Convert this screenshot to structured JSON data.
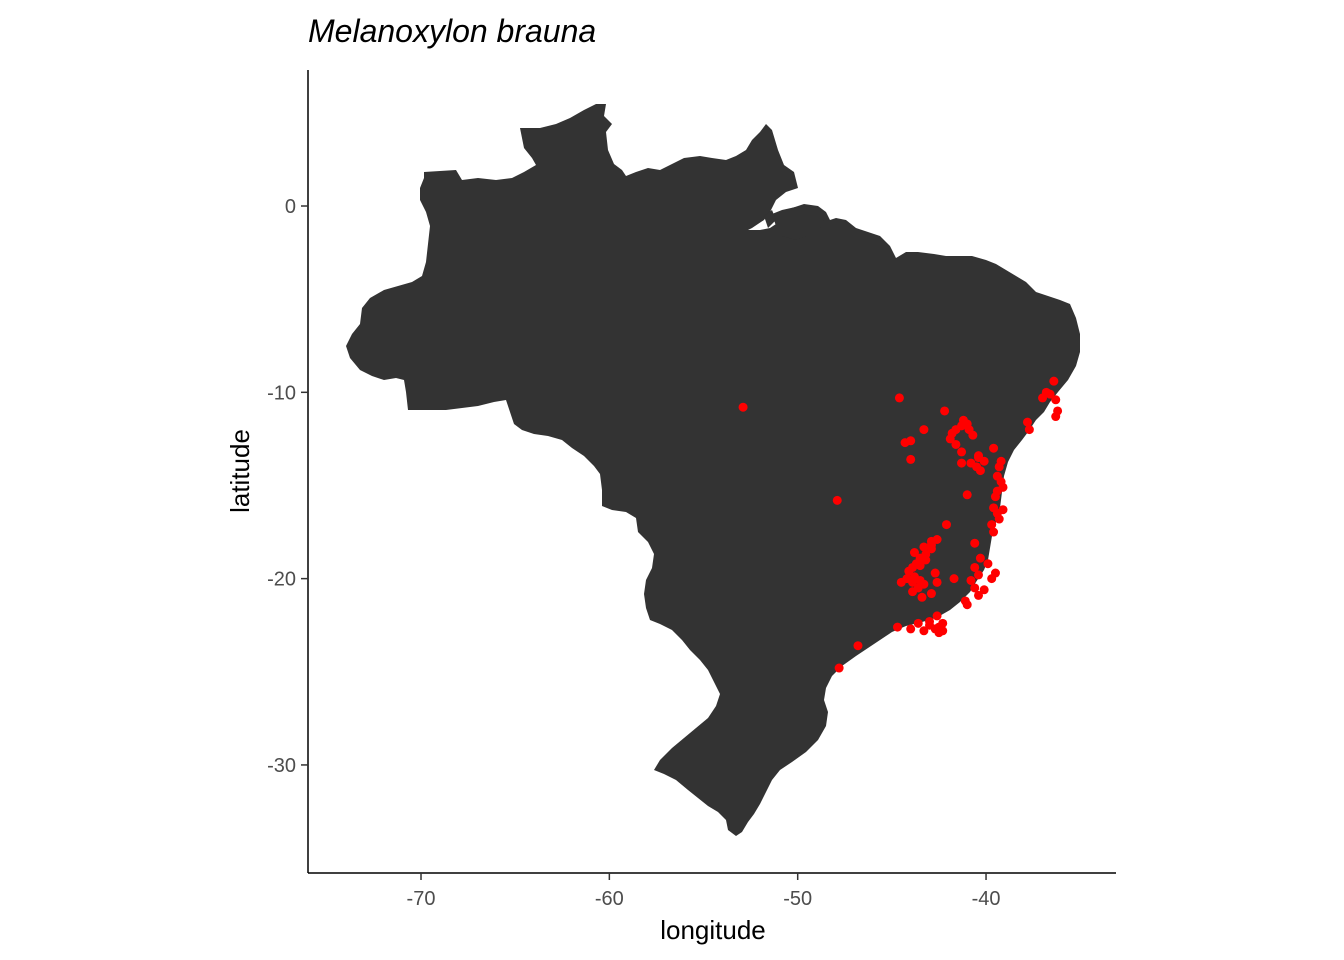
{
  "chart_data": {
    "type": "scatter",
    "title": "Melanoxylon brauna",
    "xlabel": "longitude",
    "ylabel": "latitude",
    "xlim": [
      -76,
      -33.1
    ],
    "ylim": [
      -35.8,
      7.3
    ],
    "x_ticks": [
      -70,
      -60,
      -50,
      -40
    ],
    "y_ticks": [
      0,
      -10,
      -20,
      -30
    ],
    "x_tick_labels": [
      "-70",
      "-60",
      "-50",
      "-40"
    ],
    "y_tick_labels": [
      "0",
      "-10",
      "-20",
      "-30"
    ],
    "grid": false,
    "legend": "none",
    "basemap": {
      "region": "Brazil",
      "fill_color": "#333333"
    },
    "point_color": "#ff0000",
    "series": [
      {
        "x": [
          -36.4,
          -36.6,
          -36.3,
          -36.8,
          -37.0,
          -36.2,
          -36.3,
          -37.8,
          -37.7,
          -44.6,
          -44.3,
          -44.0,
          -43.3,
          -44.0,
          -42.2,
          -41.8,
          -41.6,
          -41.3,
          -41.2,
          -41.0,
          -40.9,
          -40.7,
          -41.9,
          -41.6,
          -41.3,
          -40.4,
          -39.6,
          -40.1,
          -40.5,
          -40.3,
          -40.8,
          -40.4,
          -41.3,
          -39.2,
          -39.3,
          -39.4,
          -39.2,
          -39.1,
          -39.4,
          -39.5,
          -39.6,
          -39.4,
          -39.3,
          -39.1,
          -39.7,
          -39.6,
          -41.0,
          -52.9,
          -47.9,
          -42.1,
          -42.6,
          -42.9,
          -43.3,
          -43.2,
          -43.5,
          -43.7,
          -43.9,
          -44.1,
          -43.8,
          -43.5,
          -43.3,
          -43.6,
          -43.9,
          -44.2,
          -44.5,
          -43.9,
          -43.4,
          -42.9,
          -42.7,
          -42.6,
          -43.2,
          -43.5,
          -43.8,
          -42.9,
          -42.9,
          -40.6,
          -40.3,
          -40.6,
          -39.9,
          -39.5,
          -39.7,
          -40.4,
          -40.8,
          -40.6,
          -40.4,
          -40.1,
          -41.0,
          -41.1,
          -42.6,
          -43.0,
          -43.3,
          -42.7,
          -42.5,
          -42.3,
          -43.0,
          -43.6,
          -44.7,
          -44.0,
          -46.8,
          -47.8,
          -42.3,
          -42.5,
          -41.7
        ],
        "y": [
          -9.4,
          -10.1,
          -10.4,
          -10.0,
          -10.3,
          -11.0,
          -11.3,
          -11.6,
          -12.0,
          -10.3,
          -12.7,
          -12.6,
          -12.0,
          -13.6,
          -11.0,
          -12.2,
          -12.0,
          -11.8,
          -11.5,
          -11.7,
          -12.0,
          -12.3,
          -12.5,
          -12.8,
          -13.2,
          -13.5,
          -13.0,
          -13.7,
          -14.0,
          -14.2,
          -13.8,
          -13.4,
          -13.8,
          -13.7,
          -14.0,
          -14.5,
          -14.8,
          -15.1,
          -15.3,
          -15.6,
          -16.2,
          -16.5,
          -16.8,
          -16.3,
          -17.1,
          -17.5,
          -15.5,
          -10.8,
          -15.8,
          -17.1,
          -17.9,
          -18.0,
          -18.3,
          -18.7,
          -18.9,
          -19.2,
          -19.4,
          -19.6,
          -19.9,
          -20.1,
          -20.3,
          -20.5,
          -20.2,
          -20.0,
          -20.2,
          -20.7,
          -21.0,
          -20.8,
          -19.7,
          -20.2,
          -19.0,
          -19.3,
          -18.6,
          -18.4,
          -18.2,
          -18.1,
          -18.9,
          -19.4,
          -19.2,
          -19.7,
          -20.0,
          -19.8,
          -20.1,
          -20.5,
          -20.9,
          -20.6,
          -21.4,
          -21.2,
          -22.0,
          -22.5,
          -22.8,
          -22.7,
          -22.9,
          -22.4,
          -22.3,
          -22.4,
          -22.6,
          -22.7,
          -23.6,
          -24.8,
          -22.8,
          -22.6,
          -20.0
        ]
      }
    ]
  }
}
